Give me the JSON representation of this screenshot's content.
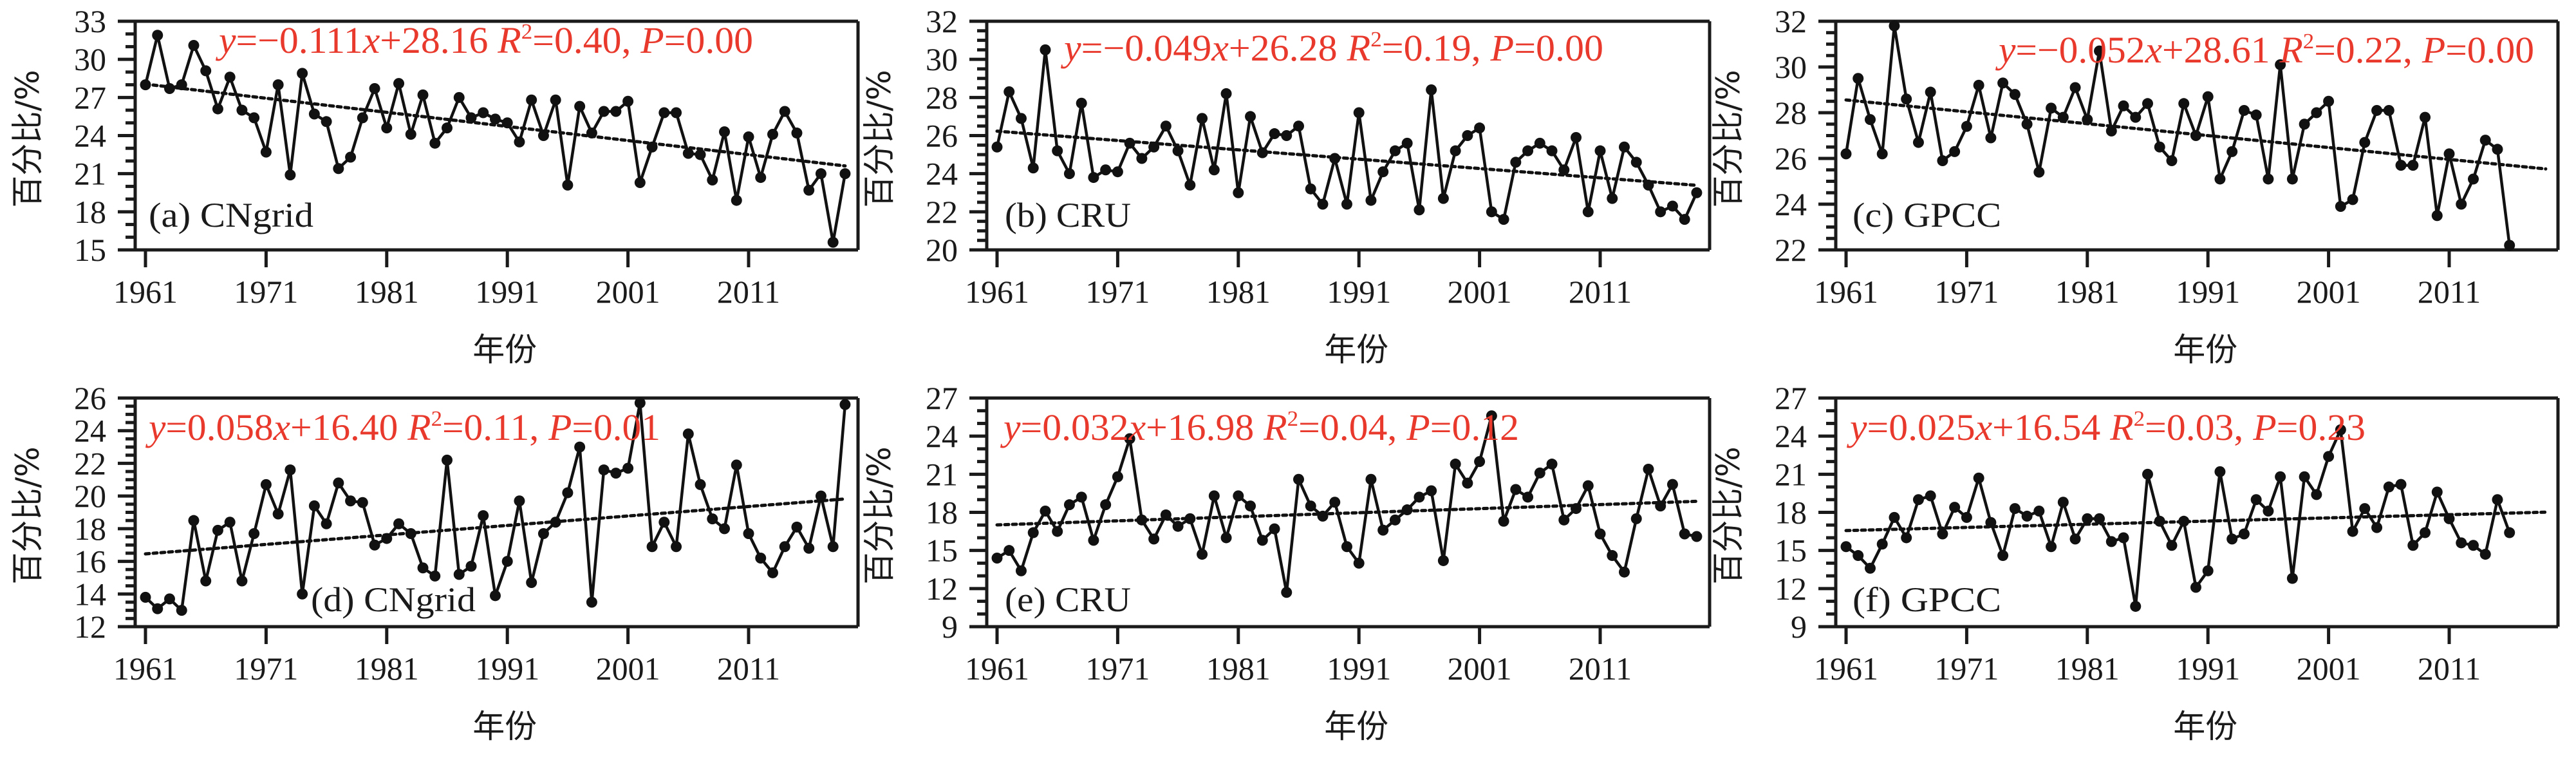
{
  "figure": {
    "x_axis_title": "年份",
    "y_axis_title": "百分比/%"
  },
  "colors": {
    "annotation": "#e8392c",
    "series": "#111111",
    "axis": "#1a1a1a"
  },
  "chart_data": [
    {
      "id": "a",
      "type": "line",
      "panel_label": "(a) CNgrid",
      "title": "",
      "xlabel": "年份",
      "ylabel": "百分比/%",
      "xlim": [
        1960,
        2020
      ],
      "ylim": [
        15,
        33
      ],
      "yticks": [
        15,
        18,
        21,
        24,
        27,
        30,
        33
      ],
      "y_minor_step": 1,
      "xticks": [
        1961,
        1971,
        1981,
        1991,
        2001,
        2011
      ],
      "grid": false,
      "regression": {
        "slope": -0.111,
        "intercept": 28.16,
        "r2": "0.40",
        "p": "0.00",
        "x_start": 1961,
        "x_end": 2019
      },
      "stat_text": {
        "eq": "=−0.111",
        "x_var": "x",
        "eq_rest": "+28.16  ",
        "r_label": "R",
        "r_sup": "2",
        "r_val": "=0.40, ",
        "p_label": "P",
        "p_val": "=0.00"
      },
      "start_year": 1961,
      "values": [
        28.0,
        31.9,
        27.7,
        28.0,
        31.1,
        29.1,
        26.1,
        28.6,
        26.0,
        25.4,
        22.7,
        28.0,
        20.9,
        28.9,
        25.7,
        25.1,
        21.4,
        22.3,
        25.4,
        27.7,
        24.6,
        28.1,
        24.1,
        27.2,
        23.4,
        24.6,
        27.0,
        25.4,
        25.8,
        25.3,
        25.0,
        23.5,
        26.8,
        24.0,
        26.8,
        20.1,
        26.3,
        24.2,
        25.9,
        25.9,
        26.7,
        20.3,
        23.1,
        25.8,
        25.8,
        22.6,
        22.5,
        20.5,
        24.3,
        18.9,
        23.9,
        20.7,
        24.1,
        25.9,
        24.2,
        19.7,
        21.0,
        15.6,
        21.0
      ]
    },
    {
      "id": "b",
      "type": "line",
      "panel_label": "(b) CRU",
      "title": "",
      "xlabel": "年份",
      "ylabel": "百分比/%",
      "xlim": [
        1960,
        2020
      ],
      "ylim": [
        20,
        32
      ],
      "yticks": [
        20,
        22,
        24,
        26,
        28,
        30,
        32
      ],
      "y_minor_step": 0.5,
      "xticks": [
        1961,
        1971,
        1981,
        1991,
        2001,
        2011
      ],
      "grid": false,
      "regression": {
        "slope": -0.049,
        "intercept": 26.28,
        "r2": "0.19",
        "p": "0.00",
        "x_start": 1961,
        "x_end": 2019
      },
      "stat_text": {
        "eq": "=−0.049",
        "x_var": "x",
        "eq_rest": "+26.28  ",
        "r_label": "R",
        "r_sup": "2",
        "r_val": "=0.19, ",
        "p_label": "P",
        "p_val": "=0.00"
      },
      "start_year": 1961,
      "values": [
        25.4,
        28.3,
        26.9,
        24.3,
        30.5,
        25.2,
        24.0,
        27.7,
        23.8,
        24.2,
        24.1,
        25.6,
        24.8,
        25.4,
        26.5,
        25.2,
        23.4,
        26.9,
        24.2,
        28.2,
        23.0,
        27.0,
        25.1,
        26.1,
        26.0,
        26.5,
        23.2,
        22.4,
        24.8,
        22.4,
        27.2,
        22.6,
        24.1,
        25.2,
        25.6,
        22.1,
        28.4,
        22.7,
        25.2,
        26.0,
        26.4,
        22.0,
        21.6,
        24.6,
        25.2,
        25.6,
        25.2,
        24.2,
        25.9,
        22.0,
        25.2,
        22.7,
        25.4,
        24.6,
        23.4,
        22.0,
        22.3,
        21.6,
        23.0
      ]
    },
    {
      "id": "c",
      "type": "line",
      "panel_label": "(c) GPCC",
      "title": "",
      "xlabel": "年份",
      "ylabel": "百分比/%",
      "xlim": [
        1960,
        2020
      ],
      "ylim": [
        22,
        32
      ],
      "yticks": [
        22,
        24,
        26,
        28,
        30,
        32
      ],
      "y_minor_step": 0.5,
      "xticks": [
        1961,
        1971,
        1981,
        1991,
        2001,
        2011
      ],
      "grid": false,
      "regression": {
        "slope": -0.052,
        "intercept": 28.61,
        "r2": "0.22",
        "p": "0.00",
        "x_start": 1961,
        "x_end": 2019
      },
      "stat_text": {
        "eq": "=−0.052",
        "x_var": "x",
        "eq_rest": "+28.61  ",
        "r_label": "R",
        "r_sup": "2",
        "r_val": "=0.22, ",
        "p_label": "P",
        "p_val": "=0.00"
      },
      "start_year": 1961,
      "values": [
        26.2,
        29.5,
        27.7,
        26.2,
        31.8,
        28.6,
        26.7,
        28.9,
        25.9,
        26.3,
        27.4,
        29.2,
        26.9,
        29.3,
        28.8,
        27.5,
        25.4,
        28.2,
        27.8,
        29.1,
        27.7,
        30.7,
        27.2,
        28.3,
        27.8,
        28.4,
        26.5,
        25.9,
        28.4,
        27.0,
        28.7,
        25.1,
        26.3,
        28.1,
        27.9,
        25.1,
        30.1,
        25.1,
        27.5,
        28.0,
        28.5,
        23.9,
        24.2,
        26.7,
        28.1,
        28.1,
        25.7,
        25.7,
        27.8,
        23.5,
        26.2,
        24.0,
        25.1,
        26.8,
        26.4,
        22.2
      ]
    },
    {
      "id": "d",
      "type": "line",
      "panel_label": "(d) CNgrid",
      "title": "",
      "xlabel": "年份",
      "ylabel": "百分比/%",
      "xlim": [
        1960,
        2020
      ],
      "ylim": [
        12,
        26
      ],
      "yticks": [
        12,
        14,
        16,
        18,
        20,
        22,
        24,
        26
      ],
      "y_minor_step": 0.5,
      "xticks": [
        1961,
        1971,
        1981,
        1991,
        2001,
        2011
      ],
      "grid": false,
      "regression": {
        "slope": 0.058,
        "intercept": 16.4,
        "r2": "0.11",
        "p": "0.01",
        "x_start": 1961,
        "x_end": 2019
      },
      "stat_text": {
        "eq": "=0.058",
        "x_var": "x",
        "eq_rest": "+16.40  ",
        "r_label": "R",
        "r_sup": "2",
        "r_val": "=0.11, ",
        "p_label": "P",
        "p_val": "=0.01"
      },
      "start_year": 1961,
      "values": [
        13.8,
        13.1,
        13.7,
        13.0,
        18.5,
        14.8,
        17.9,
        18.4,
        14.8,
        17.7,
        20.7,
        18.9,
        21.6,
        14.0,
        19.4,
        18.3,
        20.8,
        19.7,
        19.6,
        17.0,
        17.4,
        18.3,
        17.7,
        15.6,
        15.1,
        22.2,
        15.2,
        15.7,
        18.8,
        13.9,
        16.0,
        19.7,
        14.7,
        17.7,
        18.4,
        20.2,
        23.0,
        13.5,
        21.6,
        21.4,
        21.7,
        25.7,
        16.9,
        18.4,
        16.9,
        23.8,
        20.7,
        18.6,
        18.0,
        21.9,
        17.7,
        16.2,
        15.3,
        16.9,
        18.1,
        16.8,
        20.0,
        16.9,
        25.6
      ]
    },
    {
      "id": "e",
      "type": "line",
      "panel_label": "(e) CRU",
      "title": "",
      "xlabel": "年份",
      "ylabel": "百分比/%",
      "xlim": [
        1960,
        2020
      ],
      "ylim": [
        9,
        27
      ],
      "yticks": [
        9,
        12,
        15,
        18,
        21,
        24,
        27
      ],
      "y_minor_step": 1,
      "xticks": [
        1961,
        1971,
        1981,
        1991,
        2001,
        2011
      ],
      "grid": false,
      "regression": {
        "slope": 0.032,
        "intercept": 16.98,
        "r2": "0.04",
        "p": "0.12",
        "x_start": 1961,
        "x_end": 2019
      },
      "stat_text": {
        "eq": "=0.032",
        "x_var": "x",
        "eq_rest": "+16.98  ",
        "r_label": "R",
        "r_sup": "2",
        "r_val": "=0.04, ",
        "p_label": "P",
        "p_val": "=0.12"
      },
      "start_year": 1961,
      "values": [
        14.4,
        15.0,
        13.4,
        16.4,
        18.1,
        16.5,
        18.6,
        19.2,
        15.8,
        18.6,
        20.8,
        23.8,
        17.4,
        15.9,
        17.8,
        16.9,
        17.5,
        14.7,
        19.3,
        16.0,
        19.3,
        18.5,
        15.8,
        16.7,
        11.7,
        20.6,
        18.5,
        17.7,
        18.8,
        15.3,
        14.0,
        20.6,
        16.6,
        17.4,
        18.2,
        19.2,
        19.7,
        14.2,
        21.8,
        20.3,
        22.0,
        25.6,
        17.3,
        19.8,
        19.2,
        21.1,
        21.8,
        17.4,
        18.3,
        20.1,
        16.3,
        14.6,
        13.3,
        17.5,
        21.4,
        18.5,
        20.2,
        16.3,
        16.1
      ]
    },
    {
      "id": "f",
      "type": "line",
      "panel_label": "(f) GPCC",
      "title": "",
      "xlabel": "年份",
      "ylabel": "百分比/%",
      "xlim": [
        1960,
        2020
      ],
      "ylim": [
        9,
        27
      ],
      "yticks": [
        9,
        12,
        15,
        18,
        21,
        24,
        27
      ],
      "y_minor_step": 1,
      "xticks": [
        1961,
        1971,
        1981,
        1991,
        2001,
        2011
      ],
      "grid": false,
      "regression": {
        "slope": 0.025,
        "intercept": 16.54,
        "r2": "0.03",
        "p": "0.23",
        "x_start": 1961,
        "x_end": 2019
      },
      "stat_text": {
        "eq": "=0.025",
        "x_var": "x",
        "eq_rest": "+16.54  ",
        "r_label": "R",
        "r_sup": "2",
        "r_val": "=0.03, ",
        "p_label": "P",
        "p_val": "=0.23"
      },
      "start_year": 1961,
      "values": [
        15.3,
        14.6,
        13.6,
        15.5,
        17.6,
        16.0,
        19.0,
        19.3,
        16.3,
        18.4,
        17.6,
        20.7,
        17.2,
        14.6,
        18.3,
        17.7,
        18.1,
        15.3,
        18.8,
        15.9,
        17.5,
        17.5,
        15.7,
        16.0,
        10.6,
        21.0,
        17.3,
        15.4,
        17.3,
        12.1,
        13.4,
        21.2,
        15.9,
        16.3,
        19.0,
        18.1,
        20.8,
        12.8,
        20.8,
        19.4,
        22.4,
        24.5,
        16.5,
        18.3,
        16.8,
        20.0,
        20.2,
        15.4,
        16.4,
        19.6,
        17.5,
        15.6,
        15.4,
        14.7,
        19.0,
        16.4
      ]
    }
  ]
}
